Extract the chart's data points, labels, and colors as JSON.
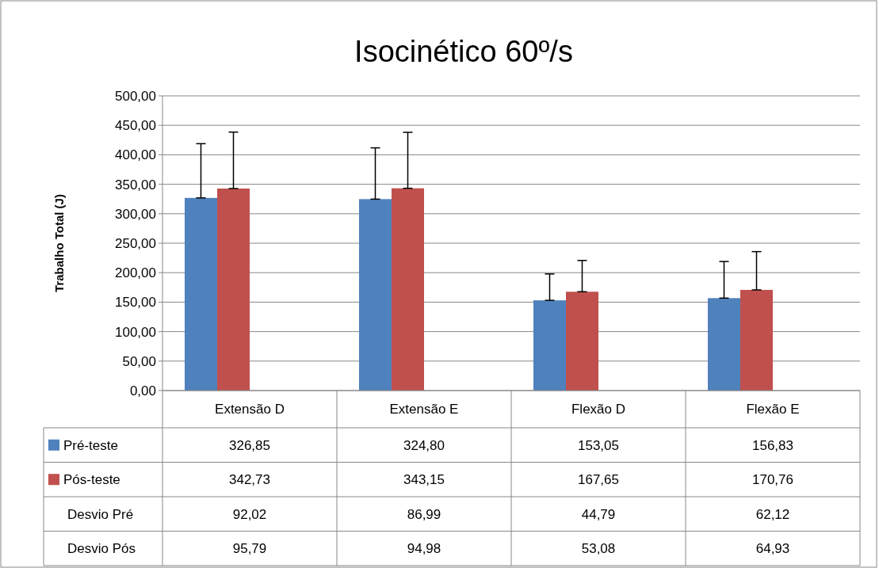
{
  "chart_data": {
    "type": "bar",
    "title": "Isocinético 60º/s",
    "ylabel": "Trabalho Total (J)",
    "categories": [
      "Extensão D",
      "Extensão E",
      "Flexão D",
      "Flexão E"
    ],
    "series": [
      {
        "name": "Pré-teste",
        "color": "#4f81bd",
        "values": [
          326.85,
          324.8,
          153.05,
          156.83
        ],
        "value_labels": [
          "326,85",
          "324,80",
          "153,05",
          "156,83"
        ],
        "errors": [
          [
            326.85,
            418.87
          ],
          [
            324.8,
            411.79
          ],
          [
            153.05,
            197.84
          ],
          [
            156.83,
            218.95
          ]
        ]
      },
      {
        "name": "Pós-teste",
        "color": "#c0504d",
        "values": [
          342.73,
          343.15,
          167.65,
          170.76
        ],
        "value_labels": [
          "342,73",
          "343,15",
          "167,65",
          "170,76"
        ],
        "errors": [
          [
            342.73,
            438.52
          ],
          [
            343.15,
            438.13
          ],
          [
            167.65,
            220.73
          ],
          [
            170.76,
            235.69
          ]
        ]
      },
      {
        "name": "Desvio Pré",
        "type": "other",
        "values": [
          null,
          null,
          null,
          null
        ],
        "value_labels": [
          "92,02",
          "86,99",
          "44,79",
          "62,12"
        ]
      },
      {
        "name": "Desvio Pós",
        "type": "other",
        "values": [
          null,
          null,
          null,
          null
        ],
        "value_labels": [
          "95,79",
          "94,98",
          "53,08",
          "64,93"
        ]
      }
    ],
    "ylim": [
      0,
      500
    ],
    "yticks": [
      {
        "value": 0,
        "label": "0,00"
      },
      {
        "value": 50,
        "label": "50,00"
      },
      {
        "value": 100,
        "label": "100,00"
      },
      {
        "value": 150,
        "label": "150,00"
      },
      {
        "value": 200,
        "label": "200,00"
      },
      {
        "value": 250,
        "label": "250,00"
      },
      {
        "value": 300,
        "label": "300,00"
      },
      {
        "value": 350,
        "label": "350,00"
      },
      {
        "value": 400,
        "label": "400,00"
      },
      {
        "value": 450,
        "label": "450,00"
      },
      {
        "value": 500,
        "label": "500,00"
      }
    ],
    "grid": "y",
    "legend": "bottom"
  }
}
